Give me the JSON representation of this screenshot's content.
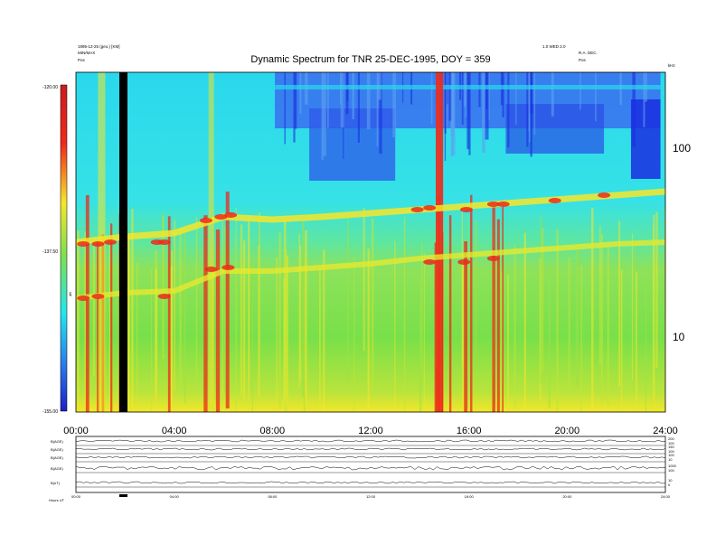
{
  "chart_data": {
    "type": "heatmap",
    "title": "Dynamic Spectrum for TNR 25-DEC-1995, DOY = 359",
    "header_left": [
      "1995-12-25 (geo.) [KM]",
      "MIN/MAX",
      "Pos"
    ],
    "header_right": [
      "1.0 WED 2.0",
      "R.A. DEC.",
      "Pos"
    ],
    "x_ticks": [
      "00:00",
      "04:00",
      "08:00",
      "12:00",
      "16:00",
      "20:00",
      "24:00"
    ],
    "xlim_hours": [
      0,
      24
    ],
    "right_axis": {
      "ticks": [
        "100",
        "10"
      ],
      "unit": "kHz",
      "scale": "log"
    },
    "colorbar": {
      "ticks": [
        "-120.00",
        "-137.50",
        "-155.00"
      ],
      "label": "dB"
    },
    "panel_rows": [
      {
        "name": "B(AGE)",
        "axis": [
          "200",
          "100"
        ]
      },
      {
        "name": "B(AGE)",
        "axis": [
          "150",
          "100"
        ]
      },
      {
        "name": "B(AGE)",
        "axis": [
          "100",
          "10"
        ]
      },
      {
        "name": "B(AGE)",
        "axis": [
          "1000",
          "100"
        ]
      },
      {
        "name": "B(nT)",
        "axis": [
          "10",
          "0"
        ]
      }
    ],
    "bottom_ticks": [
      "00:00",
      "04:00",
      "08:00",
      "12:00",
      "16:00",
      "20:00",
      "24:00"
    ],
    "bottom_label": "Hours UT",
    "colors": {
      "dark_blue": "#1a2ee0",
      "cyan": "#22e6ee",
      "green": "#7fe04c",
      "yellow": "#f5e62a",
      "red": "#ee2a1a",
      "black_gap": "#000000"
    }
  }
}
